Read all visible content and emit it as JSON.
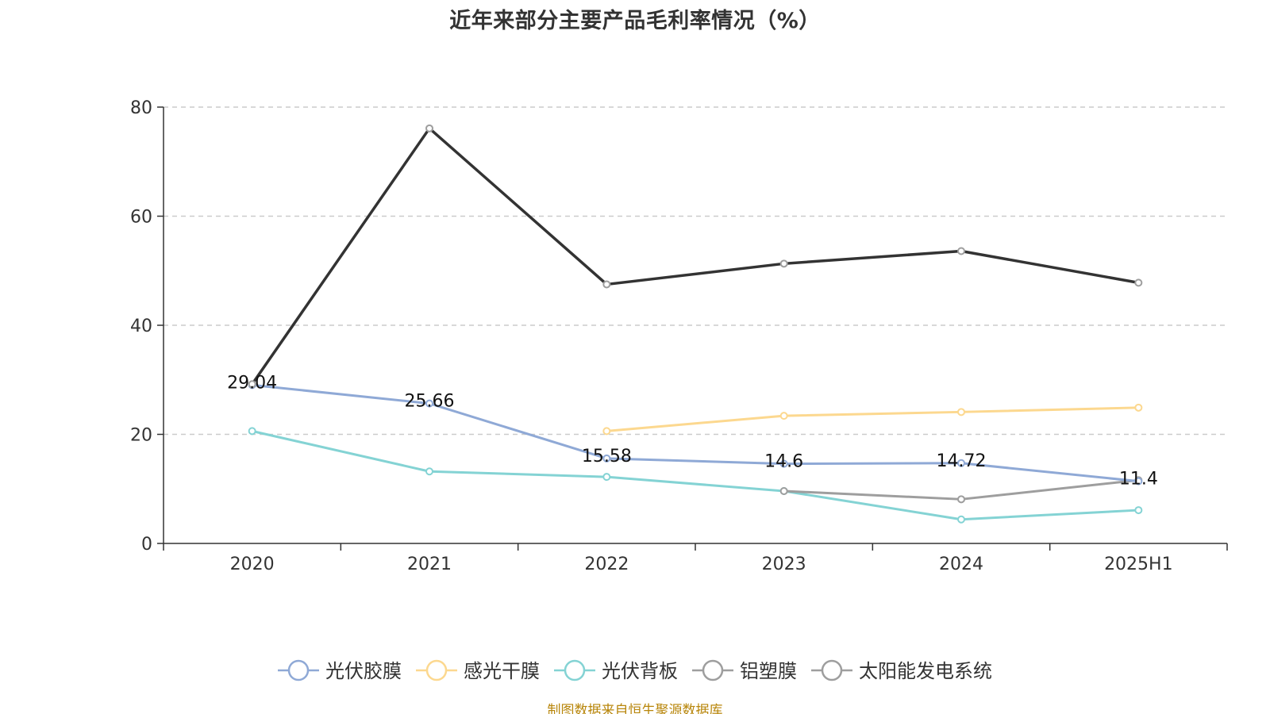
{
  "chart_data": {
    "type": "line",
    "title": "近年来部分主要产品毛利率情况（%）",
    "source": "制图数据来自恒生聚源数据库",
    "categories": [
      "2020",
      "2021",
      "2022",
      "2023",
      "2024",
      "2025H1"
    ],
    "ylim": [
      0,
      80
    ],
    "yticks": [
      0,
      20,
      40,
      60,
      80
    ],
    "grid": true,
    "legend_position": "bottom",
    "series": [
      {
        "name": "光伏胶膜",
        "color": "#8FA9D6",
        "values": [
          29.04,
          25.66,
          15.58,
          14.6,
          14.72,
          11.4
        ],
        "labels": [
          "29.04",
          "25.66",
          "15.58",
          "14.6",
          "14.72",
          "11.4"
        ]
      },
      {
        "name": "感光干膜",
        "color": "#FCD88F",
        "values": [
          null,
          null,
          20.6,
          23.4,
          24.1,
          24.9
        ]
      },
      {
        "name": "光伏背板",
        "color": "#84D3D4",
        "values": [
          20.6,
          13.2,
          12.2,
          9.6,
          4.4,
          6.1
        ]
      },
      {
        "name": "铝塑膜",
        "color": "#9E9E9E",
        "values": [
          null,
          null,
          null,
          9.6,
          8.1,
          11.6
        ]
      },
      {
        "name": "太阳能发电系统",
        "color": "#333333",
        "values": [
          29.2,
          76.1,
          47.5,
          51.3,
          53.6,
          47.8
        ]
      }
    ]
  }
}
